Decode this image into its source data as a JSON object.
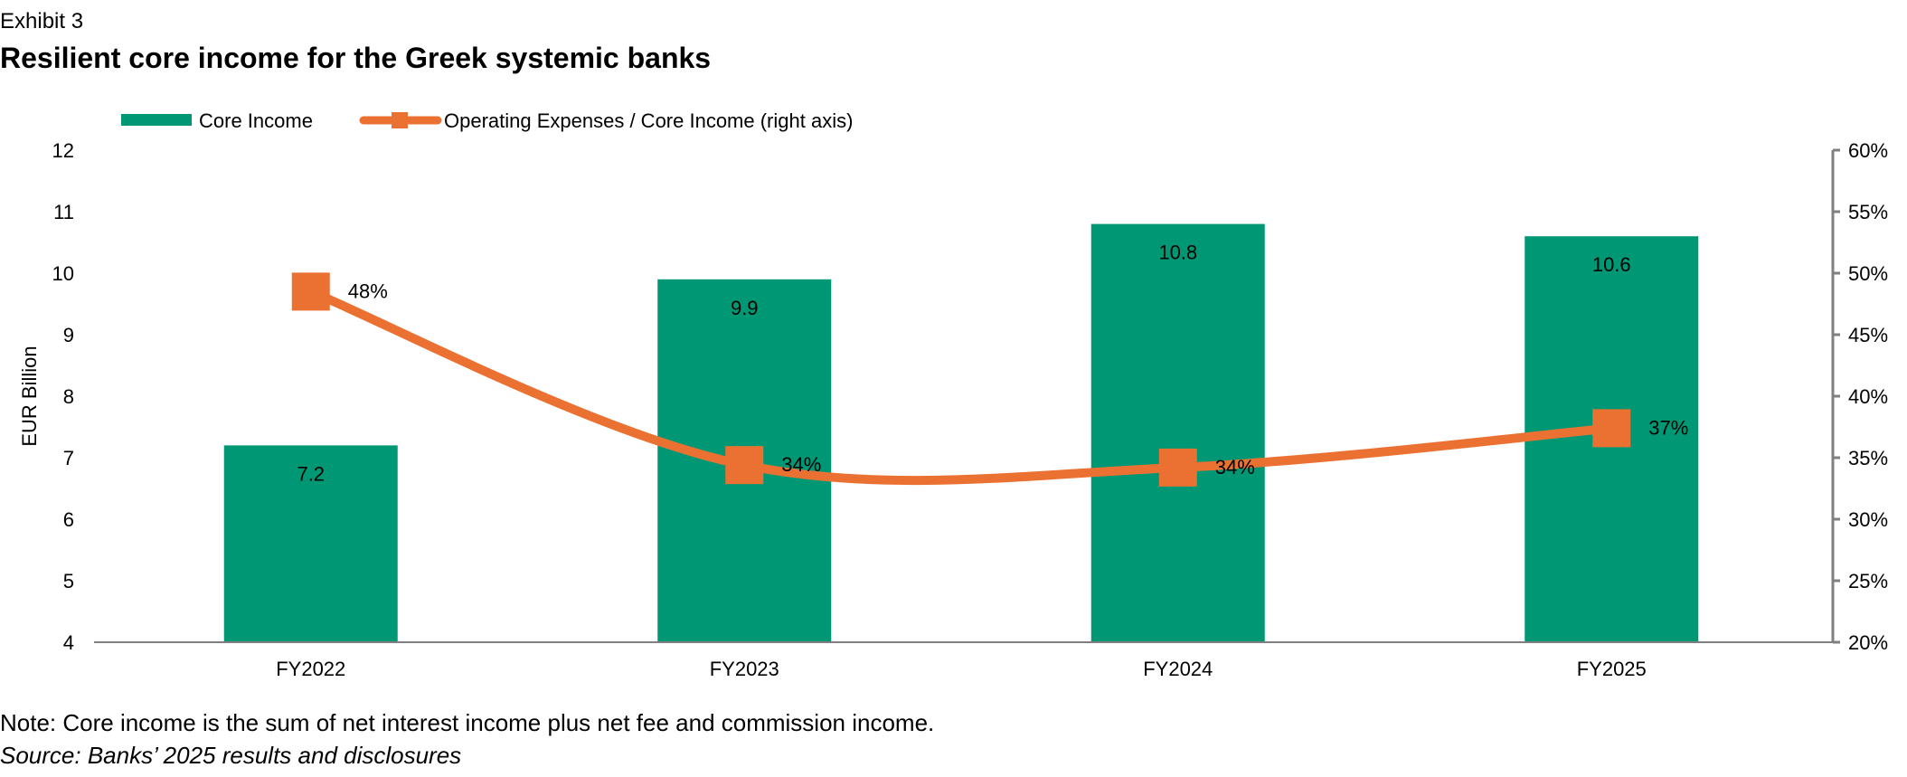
{
  "header": {
    "exhibit": "Exhibit 3",
    "title": "Resilient core income for the Greek systemic banks"
  },
  "footer": {
    "note": "Note: Core income is the sum of net interest income plus net fee and commission income.",
    "source": "Source: Banks’ 2025 results and disclosures"
  },
  "chart_data": {
    "type": "bar",
    "categories": [
      "FY2022",
      "FY2023",
      "FY2024",
      "FY2025"
    ],
    "series": [
      {
        "name": "Core Income",
        "type": "bar",
        "axis": "left",
        "values": [
          7.2,
          9.9,
          10.8,
          10.6
        ],
        "labels": [
          "7.2",
          "9.9",
          "10.8",
          "10.6"
        ],
        "color": "#009874"
      },
      {
        "name": "Operating Expenses / Core Income (right axis)",
        "type": "line",
        "axis": "right",
        "values": [
          48.5,
          34.4,
          34.2,
          37.4
        ],
        "labels": [
          "48%",
          "34%",
          "34%",
          "37%"
        ],
        "color": "#EB7132"
      }
    ],
    "ylabel": "EUR Billion",
    "ylim": [
      4,
      12
    ],
    "yticks": [
      "4",
      "5",
      "6",
      "7",
      "8",
      "9",
      "10",
      "11",
      "12"
    ],
    "y2lim": [
      20,
      60
    ],
    "y2ticks": [
      "20%",
      "25%",
      "30%",
      "35%",
      "40%",
      "45%",
      "50%",
      "55%",
      "60%"
    ],
    "legend_position": "top-left",
    "grid": false
  }
}
